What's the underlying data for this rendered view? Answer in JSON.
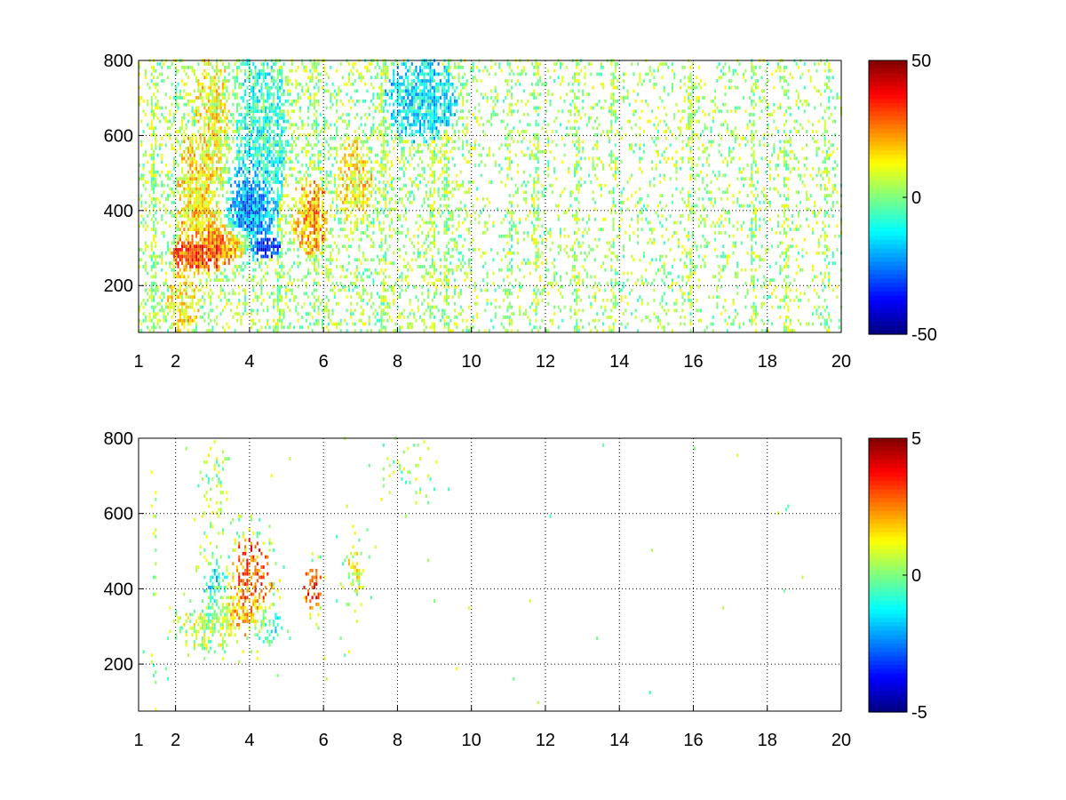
{
  "chart_data": [
    {
      "type": "heatmap",
      "title": "",
      "xlabel": "",
      "ylabel": "",
      "xlim": [
        1,
        20
      ],
      "ylim": [
        75,
        800
      ],
      "xticks": [
        1,
        2,
        4,
        6,
        8,
        10,
        12,
        14,
        16,
        18,
        20
      ],
      "yticks": [
        200,
        400,
        600,
        800
      ],
      "grid": true,
      "colormap": "jet",
      "clim": [
        -50,
        50
      ],
      "colorbar_ticks": [
        50,
        0,
        -50
      ],
      "nan_color": "#ffffff",
      "blobs": [
        {
          "x": 2.5,
          "y": 275,
          "sx": 0.35,
          "sy": 25,
          "v": 38,
          "d": 0.95
        },
        {
          "x": 3.1,
          "y": 300,
          "sx": 0.35,
          "sy": 35,
          "v": 30,
          "d": 0.9
        },
        {
          "x": 2.6,
          "y": 430,
          "sx": 0.35,
          "sy": 110,
          "v": 15,
          "d": 0.7
        },
        {
          "x": 3.0,
          "y": 620,
          "sx": 0.3,
          "sy": 140,
          "v": 12,
          "d": 0.6
        },
        {
          "x": 3.7,
          "y": 300,
          "sx": 0.25,
          "sy": 22,
          "v": 32,
          "d": 0.85
        },
        {
          "x": 4.0,
          "y": 395,
          "sx": 0.4,
          "sy": 75,
          "v": -28,
          "d": 0.85
        },
        {
          "x": 4.3,
          "y": 300,
          "sx": 0.3,
          "sy": 18,
          "v": -42,
          "d": 0.8
        },
        {
          "x": 4.3,
          "y": 600,
          "sx": 0.45,
          "sy": 150,
          "v": -8,
          "d": 0.55
        },
        {
          "x": 5.6,
          "y": 380,
          "sx": 0.3,
          "sy": 60,
          "v": 20,
          "d": 0.7
        },
        {
          "x": 6.8,
          "y": 470,
          "sx": 0.3,
          "sy": 70,
          "v": 14,
          "d": 0.55
        },
        {
          "x": 8.6,
          "y": 690,
          "sx": 0.6,
          "sy": 70,
          "v": -14,
          "d": 0.6
        },
        {
          "x": 2.2,
          "y": 150,
          "sx": 0.3,
          "sy": 60,
          "v": 12,
          "d": 0.45
        }
      ],
      "streaks": [
        1.4,
        4.8,
        5.8,
        7.6,
        8.9,
        9.3,
        11.0,
        11.7,
        12.8,
        13.8,
        15.9,
        17.6,
        18.5,
        19.6
      ]
    },
    {
      "type": "heatmap",
      "title": "",
      "xlabel": "",
      "ylabel": "",
      "xlim": [
        1,
        20
      ],
      "ylim": [
        75,
        800
      ],
      "xticks": [
        1,
        2,
        4,
        6,
        8,
        10,
        12,
        14,
        16,
        18,
        20
      ],
      "yticks": [
        200,
        400,
        600,
        800
      ],
      "grid": true,
      "colormap": "jet",
      "clim": [
        -5,
        5
      ],
      "colorbar_ticks": [
        5,
        0,
        -5
      ],
      "nan_color": "#ffffff",
      "blobs": [
        {
          "x": 2.8,
          "y": 290,
          "sx": 0.4,
          "sy": 35,
          "v": 0.5,
          "d": 0.8
        },
        {
          "x": 3.4,
          "y": 330,
          "sx": 0.4,
          "sy": 45,
          "v": 2.0,
          "d": 0.75
        },
        {
          "x": 4.0,
          "y": 400,
          "sx": 0.35,
          "sy": 80,
          "v": 2.8,
          "d": 0.65
        },
        {
          "x": 3.1,
          "y": 380,
          "sx": 0.25,
          "sy": 60,
          "v": -1.8,
          "d": 0.6
        },
        {
          "x": 4.4,
          "y": 300,
          "sx": 0.3,
          "sy": 30,
          "v": -1.2,
          "d": 0.6
        },
        {
          "x": 3.0,
          "y": 620,
          "sx": 0.25,
          "sy": 100,
          "v": 0.3,
          "d": 0.25
        },
        {
          "x": 5.7,
          "y": 400,
          "sx": 0.15,
          "sy": 40,
          "v": 3.2,
          "d": 0.6
        },
        {
          "x": 6.8,
          "y": 450,
          "sx": 0.2,
          "sy": 50,
          "v": 0.8,
          "d": 0.35
        },
        {
          "x": 8.3,
          "y": 700,
          "sx": 0.5,
          "sy": 60,
          "v": 1.0,
          "d": 0.12
        }
      ],
      "streaks": [
        1.4
      ]
    }
  ]
}
